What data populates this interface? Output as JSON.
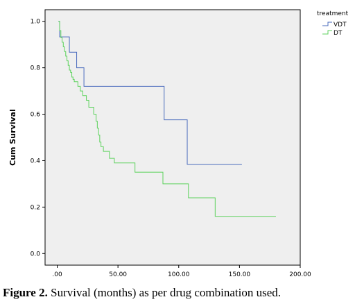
{
  "chart_data": {
    "type": "line",
    "step": true,
    "xlabel": "",
    "ylabel": "Cum Survival",
    "xlim": [
      -10,
      200
    ],
    "ylim": [
      -0.05,
      1.05
    ],
    "xticks": [
      0,
      50,
      100,
      150,
      200
    ],
    "xtick_labels": [
      ".00",
      "50.00",
      "100.00",
      "150.00",
      "200.00"
    ],
    "yticks": [
      0.0,
      0.2,
      0.4,
      0.6,
      0.8,
      1.0
    ],
    "ytick_labels": [
      "0.0",
      "0.2",
      "0.4",
      "0.6",
      "0.8",
      "1.0"
    ],
    "grid": false,
    "background": "#efefef",
    "legend": {
      "title": "treatment",
      "placement": "outside-top-right"
    },
    "series": [
      {
        "name": "VDT",
        "color": "#4a6bbd",
        "x": [
          1,
          2,
          3,
          10,
          16,
          22,
          88,
          107,
          152
        ],
        "y": [
          1.0,
          0.933,
          0.933,
          0.867,
          0.8,
          0.72,
          0.576,
          0.384,
          0.384
        ]
      },
      {
        "name": "DT",
        "color": "#5cd25c",
        "x": [
          1,
          2,
          3,
          4,
          5,
          6,
          7,
          8,
          9,
          10,
          11,
          12,
          13,
          14,
          15,
          17,
          19,
          21,
          24,
          26,
          30,
          32,
          33,
          34,
          35,
          36,
          38,
          43,
          47,
          64,
          87,
          108,
          130,
          180
        ],
        "y": [
          1.0,
          0.96,
          0.93,
          0.91,
          0.89,
          0.87,
          0.85,
          0.83,
          0.81,
          0.79,
          0.78,
          0.76,
          0.75,
          0.74,
          0.74,
          0.72,
          0.7,
          0.68,
          0.66,
          0.63,
          0.6,
          0.57,
          0.54,
          0.51,
          0.48,
          0.46,
          0.44,
          0.41,
          0.39,
          0.35,
          0.3,
          0.24,
          0.16,
          0.16
        ]
      }
    ]
  },
  "caption": {
    "label": "Figure 2.",
    "text": " Survival (months) as per drug combination used."
  }
}
